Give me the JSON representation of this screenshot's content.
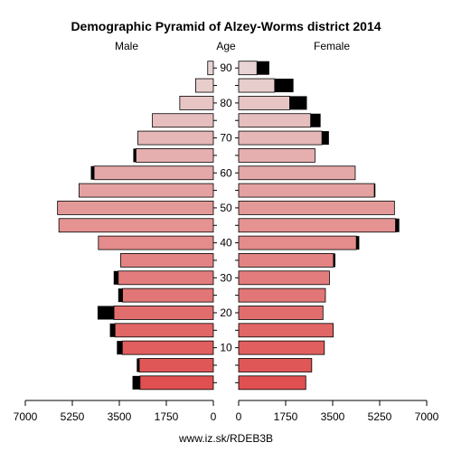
{
  "chart_data": {
    "type": "bar",
    "title": "Demographic Pyramid of Alzey-Worms district 2014",
    "left_label": "Male",
    "center_label": "Age",
    "right_label": "Female",
    "footer": "www.iz.sk/RDEB3B",
    "xlim": [
      0,
      7000
    ],
    "x_ticks": [
      "7000",
      "5250",
      "3500",
      "1750",
      "0"
    ],
    "x_ticks_right": [
      "0",
      "1750",
      "3500",
      "5250",
      "7000"
    ],
    "age_ticks": [
      "10",
      "20",
      "30",
      "40",
      "50",
      "60",
      "70",
      "80",
      "90"
    ],
    "age_groups": [
      "0-4",
      "5-9",
      "10-14",
      "15-19",
      "20-24",
      "25-29",
      "30-34",
      "35-39",
      "40-44",
      "45-49",
      "50-54",
      "55-59",
      "60-64",
      "65-69",
      "70-74",
      "75-79",
      "80-84",
      "85-89",
      "90+"
    ],
    "series": [
      {
        "name": "Male",
        "values": [
          2730,
          2760,
          3390,
          3660,
          3700,
          3380,
          3540,
          3450,
          4280,
          5750,
          5800,
          5000,
          4440,
          2880,
          2810,
          2270,
          1250,
          660,
          210
        ]
      },
      {
        "name": "Male excess",
        "values": [
          280,
          90,
          200,
          190,
          610,
          160,
          170,
          0,
          0,
          0,
          0,
          0,
          120,
          100,
          0,
          0,
          0,
          0,
          0
        ]
      },
      {
        "name": "Female",
        "values": [
          2500,
          2720,
          3190,
          3520,
          3140,
          3230,
          3380,
          3530,
          4380,
          5840,
          5800,
          5050,
          4340,
          2840,
          3100,
          2680,
          1900,
          1340,
          680
        ]
      },
      {
        "name": "Female excess",
        "values": [
          0,
          0,
          0,
          0,
          0,
          0,
          0,
          70,
          110,
          140,
          0,
          40,
          0,
          0,
          260,
          370,
          640,
          700,
          460
        ]
      }
    ],
    "colors": {
      "young": "#e05050",
      "old": "#e8d4d4",
      "excess": "#000000",
      "axis": "#000000"
    }
  }
}
